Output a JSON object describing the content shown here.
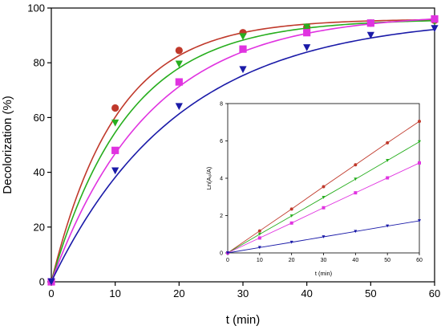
{
  "chart_data": [
    {
      "type": "line",
      "title": "",
      "xlabel": "t (min)",
      "ylabel": "Decolorization (%)",
      "xlim": [
        0,
        60
      ],
      "ylim": [
        0,
        100
      ],
      "xticks": [
        0,
        10,
        20,
        30,
        40,
        50,
        60
      ],
      "yticks": [
        0,
        20,
        40,
        60,
        80,
        100
      ],
      "x": [
        0,
        10,
        20,
        30,
        40,
        50,
        60
      ],
      "grid": false,
      "legend": "none",
      "series": [
        {
          "color": "#c0392b",
          "marker": "circle",
          "values": [
            0,
            63.5,
            84.5,
            91,
            93,
            94.5,
            95.5
          ],
          "curve_k": 0.0985,
          "curve_a": 96
        },
        {
          "color": "#27ae1e",
          "marker": "triangle-down",
          "values": [
            0,
            58,
            79.5,
            89.5,
            93,
            94.5,
            95
          ],
          "curve_k": 0.084,
          "curve_a": 96
        },
        {
          "color": "#e033e0",
          "marker": "square",
          "values": [
            0,
            48,
            73,
            85,
            91,
            94.5,
            96
          ],
          "curve_k": 0.065,
          "curve_a": 98
        },
        {
          "color": "#1a1aa8",
          "marker": "triangle-down",
          "values": [
            0,
            40.5,
            64,
            77.5,
            85.5,
            90,
            92.5
          ],
          "curve_k": 0.05,
          "curve_a": 97
        }
      ]
    },
    {
      "type": "line",
      "title": "",
      "xlabel": "t (min)",
      "ylabel": "Ln(A₀/A)",
      "xlim": [
        0,
        60
      ],
      "ylim": [
        0,
        8
      ],
      "xticks": [
        0,
        10,
        20,
        30,
        40,
        50,
        60
      ],
      "yticks": [
        0,
        2,
        4,
        6,
        8
      ],
      "x": [
        0,
        10,
        20,
        30,
        40,
        50,
        60
      ],
      "grid": false,
      "legend": "none",
      "series": [
        {
          "color": "#c0392b",
          "marker": "circle",
          "values": [
            0,
            1.18,
            2.35,
            3.55,
            4.72,
            5.9,
            7.05
          ]
        },
        {
          "color": "#27ae1e",
          "marker": "triangle-down",
          "values": [
            0,
            1.0,
            1.98,
            2.97,
            3.95,
            4.95,
            5.95
          ]
        },
        {
          "color": "#e033e0",
          "marker": "square",
          "values": [
            0,
            0.8,
            1.6,
            2.42,
            3.22,
            4.02,
            4.82
          ]
        },
        {
          "color": "#1a1aa8",
          "marker": "triangle-down",
          "values": [
            0,
            0.29,
            0.57,
            0.86,
            1.15,
            1.44,
            1.72
          ]
        }
      ]
    }
  ]
}
